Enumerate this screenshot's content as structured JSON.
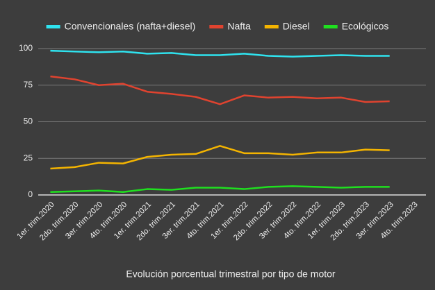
{
  "chart_data": {
    "type": "line",
    "xlabel": "Evolución porcentual trimestral por tipo de motor",
    "categories": [
      "1er. trim.2020",
      "2do. trim.2020",
      "3er. trim.2020",
      "4to. trim.2020",
      "1er. trim.2021",
      "2do. trim.2021",
      "3er. trim.2021",
      "4to. trim.2021",
      "1er. trim.2022",
      "2do. trim.2022",
      "3er. trim.2022",
      "4to. trim.2022",
      "1er. trim.2023",
      "2do. trim.2023",
      "3er. trim.2023",
      "4to. trim.2023"
    ],
    "series": [
      {
        "name": "Convencionales (nafta+diesel)",
        "color": "#2fe3ef",
        "values": [
          98.5,
          98,
          97.5,
          98,
          96.5,
          97,
          95.5,
          95.5,
          96.5,
          95,
          94.5,
          95,
          95.5,
          95,
          95,
          null
        ]
      },
      {
        "name": "Nafta",
        "color": "#e0432f",
        "values": [
          81,
          79,
          75,
          76,
          70.5,
          69,
          67,
          62,
          68,
          66.5,
          67,
          66,
          66.5,
          63.5,
          64,
          null
        ]
      },
      {
        "name": "Diesel",
        "color": "#f4b400",
        "values": [
          18,
          19,
          22,
          21.5,
          26,
          27.5,
          28,
          33.5,
          28.5,
          28.5,
          27.5,
          29,
          29,
          31,
          30.5,
          null
        ]
      },
      {
        "name": "Ecológicos",
        "color": "#1fe01f",
        "values": [
          2,
          2.5,
          3,
          2,
          4,
          3.5,
          5,
          5,
          4,
          5.5,
          6,
          5.5,
          5,
          5.5,
          5.5,
          null
        ]
      }
    ],
    "ylim": [
      0,
      100
    ],
    "yticks": [
      0,
      25,
      50,
      75,
      100
    ],
    "grid": true,
    "legend": "top"
  }
}
